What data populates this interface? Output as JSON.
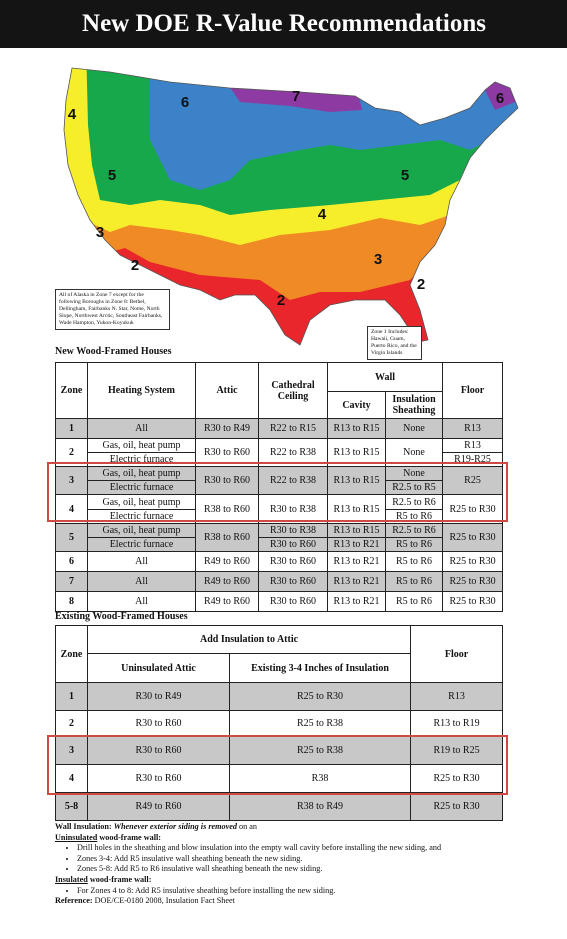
{
  "header": {
    "title": "New DOE R-Value Recommendations"
  },
  "map": {
    "zone_labels": [
      "4",
      "6",
      "7",
      "6",
      "5",
      "5",
      "4",
      "3",
      "2",
      "3",
      "2",
      "2"
    ],
    "alaska_note": "All of Alaska in Zone 7 except for the following Boroughs in Zone 8: Bethel, Dellingham, Fairbanks N. Star, Nome, North Slope, Northwest Arctic, Southeast Fairbanks, Wade Hampton, Yukon-Koyukuk",
    "zone1_note": "Zone 1 Includes: Hawaii, Guam, Puerto Rico, and the Virgin Islands"
  },
  "new_houses": {
    "title": "New Wood-Framed Houses",
    "headers": {
      "zone": "Zone",
      "heating": "Heating System",
      "attic": "Attic",
      "cathedral": "Cathedral Ceiling",
      "wall": "Wall",
      "cavity": "Cavity",
      "sheathing": "Insulation Sheathing",
      "floor": "Floor"
    },
    "rows": [
      [
        [
          "1"
        ],
        [
          "All"
        ],
        [
          "R30 to R49"
        ],
        [
          "R22 to R15"
        ],
        [
          "R13 to R15"
        ],
        [
          "None"
        ],
        [
          "R13"
        ]
      ],
      [
        [
          "2"
        ],
        [
          "Gas, oil, heat pump",
          "Electric furnace"
        ],
        [
          "R30 to R60"
        ],
        [
          "R22 to R38"
        ],
        [
          "R13 to R15"
        ],
        [
          "None"
        ],
        [
          "R13",
          "R19-R25"
        ]
      ],
      [
        [
          "3"
        ],
        [
          "Gas, oil, heat pump",
          "Electric furnace"
        ],
        [
          "R30 to R60"
        ],
        [
          "R22 to R38"
        ],
        [
          "R13 to R15"
        ],
        [
          "None",
          "R2.5 to R5"
        ],
        [
          "R25"
        ]
      ],
      [
        [
          "4"
        ],
        [
          "Gas, oil, heat pump",
          "Electric furnace"
        ],
        [
          "R38 to R60"
        ],
        [
          "R30 to R38"
        ],
        [
          "R13 to R15"
        ],
        [
          "R2.5 to R6",
          "R5 to R6"
        ],
        [
          "R25 to R30"
        ]
      ],
      [
        [
          "5"
        ],
        [
          "Gas, oil, heat pump",
          "Electric furnace"
        ],
        [
          "R38 to R60"
        ],
        [
          "R30 to R38",
          "R30 to R60"
        ],
        [
          "R13 to R15",
          "R13 to R21"
        ],
        [
          "R2.5 to R6",
          "R5 to R6"
        ],
        [
          "R25 to R30"
        ]
      ],
      [
        [
          "6"
        ],
        [
          "All"
        ],
        [
          "R49 to R60"
        ],
        [
          "R30 to R60"
        ],
        [
          "R13 to R21"
        ],
        [
          "R5 to R6"
        ],
        [
          "R25 to R30"
        ]
      ],
      [
        [
          "7"
        ],
        [
          "All"
        ],
        [
          "R49 to R60"
        ],
        [
          "R30 to R60"
        ],
        [
          "R13 to R21"
        ],
        [
          "R5 to R6"
        ],
        [
          "R25 to R30"
        ]
      ],
      [
        [
          "8"
        ],
        [
          "All"
        ],
        [
          "R49 to R60"
        ],
        [
          "R30 to R60"
        ],
        [
          "R13 to R21"
        ],
        [
          "R5 to R6"
        ],
        [
          "R25 to R30"
        ]
      ]
    ]
  },
  "existing_houses": {
    "title": "Existing Wood-Framed Houses",
    "headers": {
      "zone": "Zone",
      "add_attic": "Add Insulation to Attic",
      "uninsulated": "Uninsulated Attic",
      "existing": "Existing 3-4 Inches of Insulation",
      "floor": "Floor"
    },
    "rows": [
      [
        "1",
        "R30 to R49",
        "R25 to R30",
        "R13"
      ],
      [
        "2",
        "R30 to R60",
        "R25 to R38",
        "R13 to R19"
      ],
      [
        "3",
        "R30 to R60",
        "R25 to R38",
        "R19 to R25"
      ],
      [
        "4",
        "R30 to R60",
        "R38",
        "R25 to R30"
      ],
      [
        "5-8",
        "R49 to R60",
        "R38 to R49",
        "R25 to R30"
      ]
    ]
  },
  "notes": {
    "wall_insulation": {
      "label": "Wall Insulation:",
      "emphasis": "Whenever exterior siding is removed",
      "tail": "on an"
    },
    "uninsulated": {
      "label": "Uninsulated",
      "tail": "wood-frame wall:",
      "bullets": [
        "Drill holes in the sheathing and blow insulation into the empty wall cavity before installing the new siding, and",
        "Zones 3-4: Add R5 insulative wall sheathing beneath the new siding.",
        "Zones 5-8: Add R5 to R6 insulative wall sheathing beneath the new siding."
      ]
    },
    "insulated": {
      "label": "Insulated",
      "tail": "wood-frame wall:",
      "bullets": [
        "For Zones 4 to 8: Add R5 insulative sheathing before installing the new siding."
      ]
    },
    "reference": {
      "label": "Reference:",
      "text": "DOE/CE-0180 2008, Insulation Fact Sheet"
    }
  }
}
